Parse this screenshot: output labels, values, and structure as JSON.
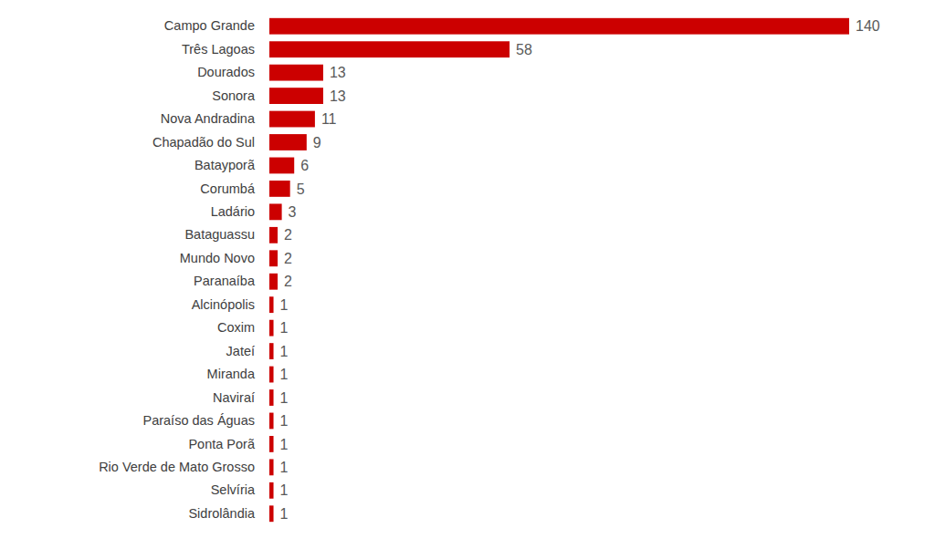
{
  "chart_data": {
    "type": "bar",
    "orientation": "horizontal",
    "categories": [
      "Campo Grande",
      "Três Lagoas",
      "Dourados",
      "Sonora",
      "Nova Andradina",
      "Chapadão do Sul",
      "Batayporã",
      "Corumbá",
      "Ladário",
      "Bataguassu",
      "Mundo Novo",
      "Paranaíba",
      "Alcinópolis",
      "Coxim",
      "Jateí",
      "Miranda",
      "Naviraí",
      "Paraíso das Águas",
      "Ponta Porã",
      "Rio Verde de Mato Grosso",
      "Selvíria",
      "Sidrolândia"
    ],
    "values": [
      140,
      58,
      13,
      13,
      11,
      9,
      6,
      5,
      3,
      2,
      2,
      2,
      1,
      1,
      1,
      1,
      1,
      1,
      1,
      1,
      1,
      1
    ],
    "color": "#cc0000",
    "xlim": [
      0,
      140
    ],
    "data_labels": true,
    "tick_labels": "y",
    "grid": false
  }
}
